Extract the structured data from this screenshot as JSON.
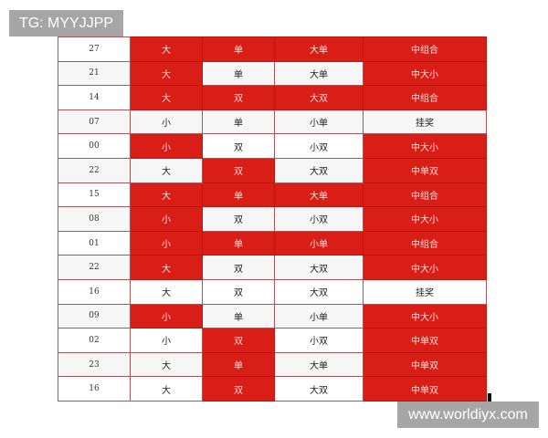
{
  "watermarks": {
    "top_left": "TG: MYYJJPP",
    "bottom_right": "www.worldiyx.com"
  },
  "colors": {
    "highlight": "#d81e16",
    "highlight_text": "#ffe0dc"
  },
  "rows": [
    {
      "num": "27",
      "cells": [
        {
          "t": "大",
          "red": true
        },
        {
          "t": "单",
          "red": true
        },
        {
          "t": "大单",
          "red": true
        },
        {
          "t": "中组合",
          "red": true
        }
      ]
    },
    {
      "num": "21",
      "cells": [
        {
          "t": "大",
          "red": true
        },
        {
          "t": "单",
          "red": false
        },
        {
          "t": "大单",
          "red": false
        },
        {
          "t": "中大小",
          "red": true
        }
      ]
    },
    {
      "num": "14",
      "cells": [
        {
          "t": "大",
          "red": true
        },
        {
          "t": "双",
          "red": true
        },
        {
          "t": "大双",
          "red": true
        },
        {
          "t": "中组合",
          "red": true
        }
      ]
    },
    {
      "num": "07",
      "cells": [
        {
          "t": "小",
          "red": false
        },
        {
          "t": "单",
          "red": false
        },
        {
          "t": "小单",
          "red": false
        },
        {
          "t": "挂奖",
          "red": false
        }
      ]
    },
    {
      "num": "00",
      "cells": [
        {
          "t": "小",
          "red": true
        },
        {
          "t": "双",
          "red": false
        },
        {
          "t": "小双",
          "red": false
        },
        {
          "t": "中大小",
          "red": true
        }
      ]
    },
    {
      "num": "22",
      "cells": [
        {
          "t": "大",
          "red": false
        },
        {
          "t": "双",
          "red": true
        },
        {
          "t": "大双",
          "red": false
        },
        {
          "t": "中单双",
          "red": true
        }
      ]
    },
    {
      "num": "15",
      "cells": [
        {
          "t": "大",
          "red": true
        },
        {
          "t": "单",
          "red": true
        },
        {
          "t": "大单",
          "red": true
        },
        {
          "t": "中组合",
          "red": true
        }
      ]
    },
    {
      "num": "08",
      "cells": [
        {
          "t": "小",
          "red": true
        },
        {
          "t": "双",
          "red": false
        },
        {
          "t": "小双",
          "red": false
        },
        {
          "t": "中大小",
          "red": true
        }
      ]
    },
    {
      "num": "01",
      "cells": [
        {
          "t": "小",
          "red": true
        },
        {
          "t": "单",
          "red": true
        },
        {
          "t": "小单",
          "red": true
        },
        {
          "t": "中组合",
          "red": true
        }
      ]
    },
    {
      "num": "22",
      "cells": [
        {
          "t": "大",
          "red": true
        },
        {
          "t": "双",
          "red": false
        },
        {
          "t": "大双",
          "red": false
        },
        {
          "t": "中大小",
          "red": true
        }
      ]
    },
    {
      "num": "16",
      "cells": [
        {
          "t": "大",
          "red": false
        },
        {
          "t": "双",
          "red": false
        },
        {
          "t": "大双",
          "red": false
        },
        {
          "t": "挂奖",
          "red": false
        }
      ]
    },
    {
      "num": "09",
      "cells": [
        {
          "t": "小",
          "red": true
        },
        {
          "t": "单",
          "red": false
        },
        {
          "t": "小单",
          "red": false
        },
        {
          "t": "中大小",
          "red": true
        }
      ]
    },
    {
      "num": "02",
      "cells": [
        {
          "t": "小",
          "red": false
        },
        {
          "t": "双",
          "red": true
        },
        {
          "t": "小双",
          "red": false
        },
        {
          "t": "中单双",
          "red": true
        }
      ]
    },
    {
      "num": "23",
      "cells": [
        {
          "t": "大",
          "red": false
        },
        {
          "t": "单",
          "red": true
        },
        {
          "t": "大单",
          "red": false
        },
        {
          "t": "中单双",
          "red": true
        }
      ]
    },
    {
      "num": "16",
      "cells": [
        {
          "t": "大",
          "red": false
        },
        {
          "t": "双",
          "red": true
        },
        {
          "t": "大双",
          "red": false
        },
        {
          "t": "中单双",
          "red": true
        }
      ]
    }
  ]
}
